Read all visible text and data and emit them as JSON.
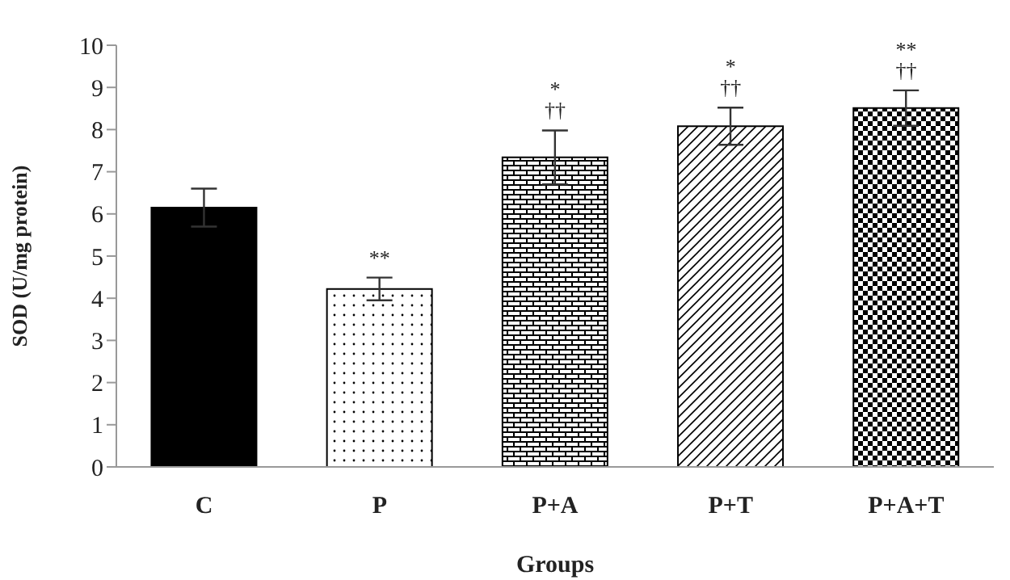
{
  "chart_data": {
    "type": "bar",
    "xlabel": "Groups",
    "ylabel": "SOD (U/mg protein)",
    "categories": [
      "C",
      "P",
      "P+A",
      "P+T",
      "P+A+T"
    ],
    "values": [
      6.15,
      4.22,
      7.34,
      8.08,
      8.51
    ],
    "errors": [
      0.45,
      0.27,
      0.64,
      0.44,
      0.42
    ],
    "colors": [
      "#000000",
      "#000000",
      "#000000",
      "#000000",
      "#000000"
    ],
    "ylim": [
      0,
      10
    ],
    "yticks": [
      0,
      1,
      2,
      3,
      4,
      5,
      6,
      7,
      8,
      9,
      10
    ],
    "grid": false,
    "legend": false,
    "annotations": [
      {
        "text": "**",
        "x": "P",
        "y": 4.49
      },
      {
        "text": "††",
        "x": "P+A",
        "y": 7.98
      },
      {
        "text": "*",
        "x": "P+A",
        "y": 7.98
      },
      {
        "text": "††",
        "x": "P+T",
        "y": 8.52
      },
      {
        "text": "*",
        "x": "P+T",
        "y": 8.52
      },
      {
        "text": "††",
        "x": "P+A+T",
        "y": 8.93
      },
      {
        "text": "**",
        "x": "P+A+T",
        "y": 8.93
      }
    ]
  }
}
